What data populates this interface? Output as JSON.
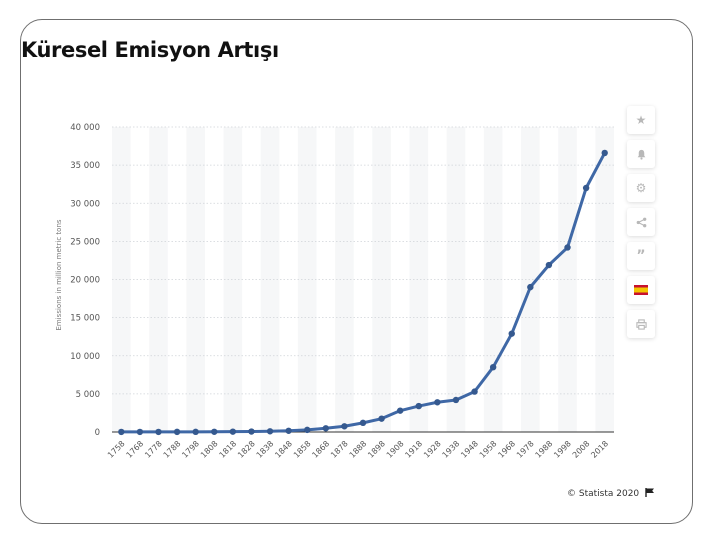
{
  "title": "Küresel Emisyon Artışı",
  "credit": "© Statista 2020",
  "toolbar": {
    "icons": [
      "star-icon",
      "bell-icon",
      "gear-icon",
      "share-icon",
      "quote-icon",
      "flag-icon",
      "print-icon"
    ]
  },
  "colors": {
    "line": "#3f68a6",
    "marker": "#35598f",
    "grid": "#cfd3d8",
    "axis_text": "#555555",
    "flag_red": "#c8102e",
    "flag_yellow": "#f2c500"
  },
  "chart_data": {
    "type": "line",
    "title": "",
    "xlabel": "",
    "ylabel": "Emissions in million metric tons",
    "ylim": [
      0,
      40000
    ],
    "yticks": [
      0,
      5000,
      10000,
      15000,
      20000,
      25000,
      30000,
      35000,
      40000
    ],
    "ytick_labels": [
      "0",
      "5 000",
      "10 000",
      "15 000",
      "20 000",
      "25 000",
      "30 000",
      "35 000",
      "40 000"
    ],
    "grid": true,
    "categories": [
      "1758",
      "1768",
      "1778",
      "1788",
      "1798",
      "1808",
      "1818",
      "1828",
      "1838",
      "1848",
      "1858",
      "1868",
      "1878",
      "1888",
      "1898",
      "1908",
      "1918",
      "1928",
      "1938",
      "1948",
      "1958",
      "1968",
      "1978",
      "1988",
      "1998",
      "2008",
      "2018"
    ],
    "series": [
      {
        "name": "",
        "values": [
          10,
          11,
          13,
          16,
          21,
          30,
          45,
          60,
          95,
          160,
          280,
          490,
          750,
          1200,
          1750,
          2800,
          3400,
          3900,
          4200,
          5300,
          8500,
          12900,
          19000,
          21900,
          24200,
          32000,
          36600
        ]
      }
    ]
  }
}
